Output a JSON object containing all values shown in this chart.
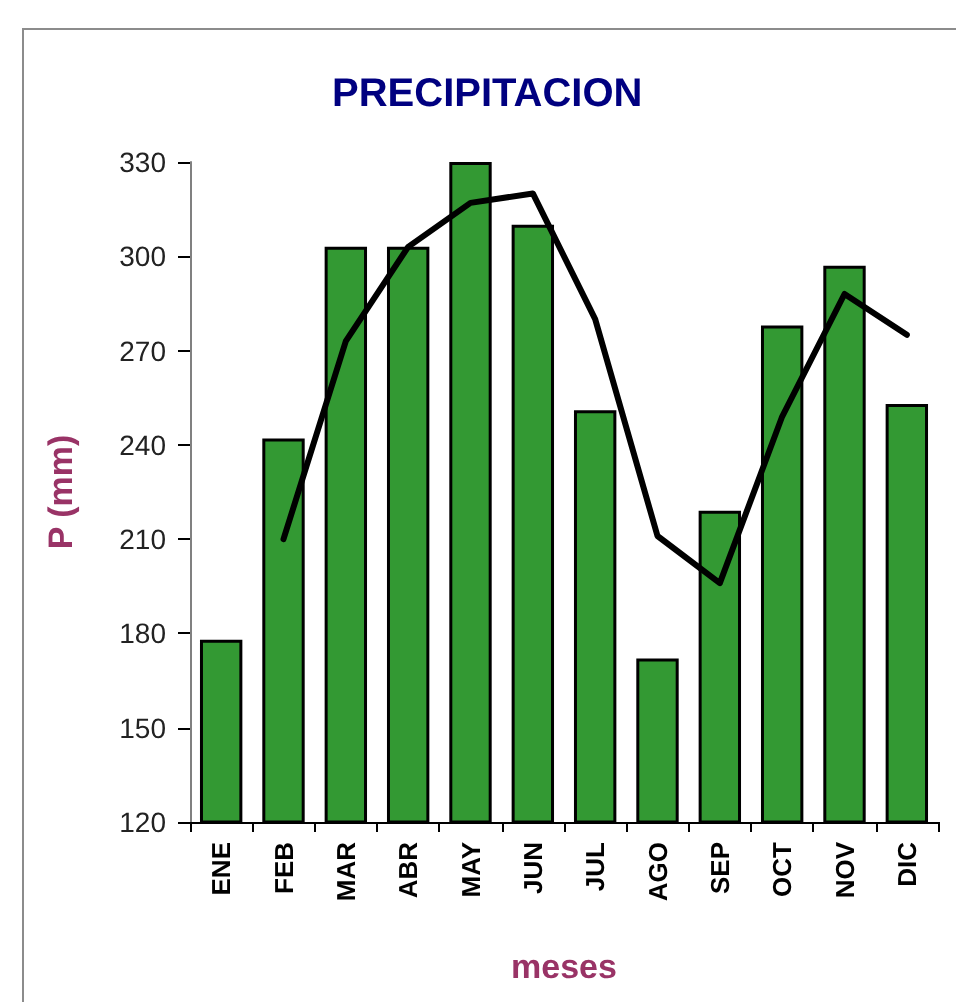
{
  "chart_data": {
    "type": "bar",
    "title": "PRECIPITACION",
    "xlabel": "meses",
    "ylabel": "P (mm)",
    "categories": [
      "ENE",
      "FEB",
      "MAR",
      "ABR",
      "MAY",
      "JUN",
      "JUL",
      "AGO",
      "SEP",
      "OCT",
      "NOV",
      "DIC"
    ],
    "series": [
      {
        "color": "#339933",
        "values": [
          178,
          242,
          303,
          303,
          330,
          310,
          251,
          172,
          219,
          278,
          297,
          253
        ]
      },
      {
        "type": "line",
        "color": "#000000",
        "values": [
          null,
          210,
          273,
          303,
          317,
          320,
          280,
          211,
          196,
          249,
          288,
          275
        ]
      }
    ],
    "ylim": [
      120,
      330
    ],
    "yticks": [
      120,
      150,
      180,
      210,
      240,
      270,
      300,
      330
    ],
    "marker": "none"
  }
}
